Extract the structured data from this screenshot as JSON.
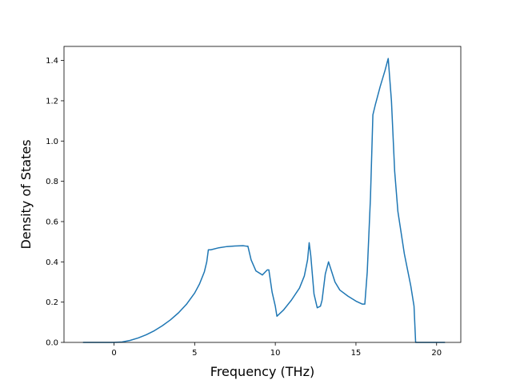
{
  "chart_data": {
    "type": "line",
    "title": "",
    "xlabel": "Frequency (THz)",
    "ylabel": "Density of States",
    "xlim": [
      -3.1,
      21.5
    ],
    "ylim": [
      0,
      1.47
    ],
    "xticks": [
      0,
      5,
      10,
      15,
      20
    ],
    "yticks": [
      0.0,
      0.2,
      0.4,
      0.6,
      0.8,
      1.0,
      1.2,
      1.4
    ],
    "xtick_labels": [
      "0",
      "5",
      "10",
      "15",
      "20"
    ],
    "ytick_labels": [
      "0.0",
      "0.2",
      "0.4",
      "0.6",
      "0.8",
      "1.0",
      "1.2",
      "1.4"
    ],
    "grid": false,
    "line_color": "#1f77b4",
    "series": [
      {
        "x": [
          -1.9,
          -1.0,
          0.0,
          0.5,
          1.0,
          1.5,
          2.0,
          2.5,
          3.0,
          3.5,
          4.0,
          4.5,
          5.0,
          5.3,
          5.6,
          5.75,
          5.85,
          6.0,
          6.5,
          7.0,
          7.5,
          8.0,
          8.2,
          8.3,
          8.5,
          8.8,
          9.2,
          9.5,
          9.6,
          9.8,
          10.0,
          10.1,
          10.5,
          11.0,
          11.5,
          11.8,
          12.0,
          12.1,
          12.2,
          12.4,
          12.6,
          12.8,
          12.9,
          13.1,
          13.3,
          13.5,
          13.7,
          14.0,
          14.5,
          15.0,
          15.4,
          15.55,
          15.7,
          15.9,
          16.05,
          16.2,
          16.5,
          16.8,
          17.0,
          17.2,
          17.4,
          17.6,
          18.0,
          18.4,
          18.6,
          18.7,
          19.5,
          20.5
        ],
        "y": [
          0.0,
          0.0,
          0.0,
          0.002,
          0.01,
          0.022,
          0.038,
          0.058,
          0.083,
          0.112,
          0.147,
          0.19,
          0.245,
          0.29,
          0.35,
          0.4,
          0.46,
          0.46,
          0.47,
          0.476,
          0.479,
          0.48,
          0.478,
          0.478,
          0.41,
          0.355,
          0.335,
          0.36,
          0.36,
          0.25,
          0.18,
          0.13,
          0.16,
          0.21,
          0.27,
          0.33,
          0.41,
          0.495,
          0.43,
          0.24,
          0.172,
          0.18,
          0.21,
          0.34,
          0.4,
          0.35,
          0.3,
          0.26,
          0.23,
          0.205,
          0.19,
          0.19,
          0.35,
          0.72,
          1.13,
          1.18,
          1.27,
          1.35,
          1.41,
          1.2,
          0.85,
          0.65,
          0.44,
          0.28,
          0.18,
          0.0,
          0.0,
          0.0
        ]
      }
    ]
  }
}
